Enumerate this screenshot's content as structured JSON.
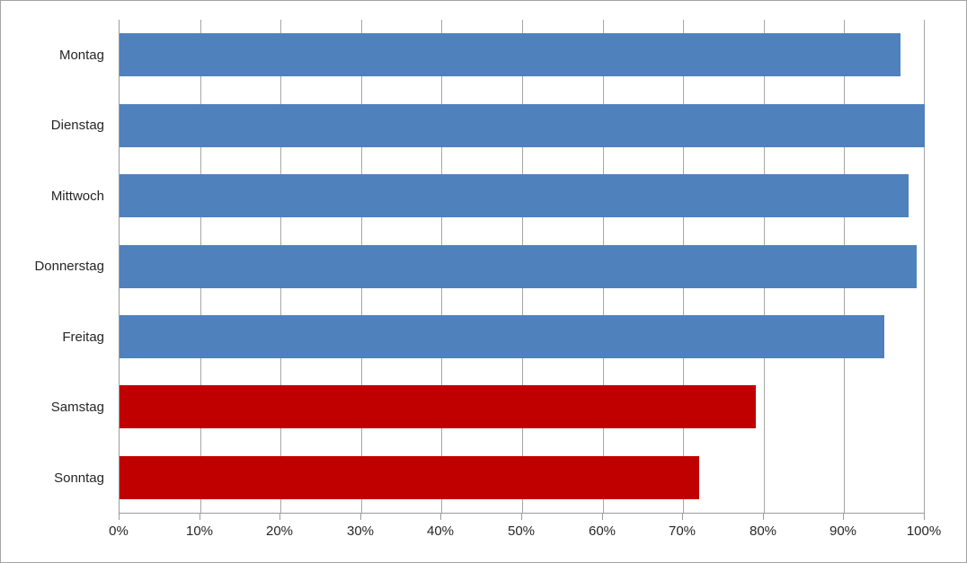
{
  "chart_data": {
    "type": "bar",
    "orientation": "horizontal",
    "title": "",
    "xlabel": "",
    "ylabel": "",
    "categories": [
      "Montag",
      "Dienstag",
      "Mittwoch",
      "Donnerstag",
      "Freitag",
      "Samstag",
      "Sonntag"
    ],
    "values": [
      97,
      100,
      98,
      99,
      95,
      79,
      72
    ],
    "bar_colors": [
      "#4F81BD",
      "#4F81BD",
      "#4F81BD",
      "#4F81BD",
      "#4F81BD",
      "#C00000",
      "#C00000"
    ],
    "xlim": [
      0,
      100
    ],
    "x_tick_values": [
      0,
      10,
      20,
      30,
      40,
      50,
      60,
      70,
      80,
      90,
      100
    ],
    "x_tick_labels": [
      "0%",
      "10%",
      "20%",
      "30%",
      "40%",
      "50%",
      "60%",
      "70%",
      "80%",
      "90%",
      "100%"
    ],
    "grid": "vertical",
    "legend": "none",
    "colors": {
      "weekday_bar": "#4F81BD",
      "weekend_bar": "#C00000",
      "gridline": "#A6A6A6",
      "axis_line": "#9B9B9B",
      "text": "#262626",
      "background": "#FFFFFF",
      "frame_border": "#A3A3A3"
    }
  }
}
